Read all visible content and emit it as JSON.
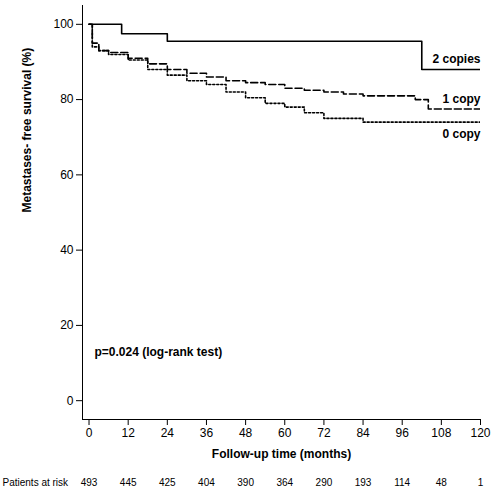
{
  "chart_data": {
    "type": "line",
    "xlabel": "Follow-up time (months)",
    "ylabel": "Metastases- free survival (%)",
    "xlim": [
      -2,
      120
    ],
    "ylim": [
      -5,
      105
    ],
    "xticks": [
      0,
      12,
      24,
      36,
      48,
      60,
      72,
      84,
      96,
      108,
      120
    ],
    "yticks": [
      0,
      20,
      40,
      60,
      80,
      100
    ],
    "grid": false,
    "annotations": [
      {
        "text": "p=0.024 (log-rank test)"
      }
    ],
    "series": [
      {
        "name": "2 copies",
        "color": "#000000",
        "line_style": "solid",
        "x": [
          0,
          10,
          24,
          102,
          120
        ],
        "values": [
          100,
          97.5,
          95.5,
          88,
          88
        ]
      },
      {
        "name": "1 copy",
        "color": "#000000",
        "line_style": "dashed",
        "x": [
          0,
          1,
          3,
          6,
          12,
          18,
          24,
          30,
          36,
          42,
          48,
          54,
          60,
          66,
          72,
          78,
          84,
          96,
          100,
          104,
          120
        ],
        "values": [
          100,
          95,
          93,
          92.5,
          91,
          89.5,
          88,
          87,
          86,
          85,
          84.5,
          84,
          83,
          82.5,
          82,
          81.5,
          81,
          81,
          80,
          77.5,
          77.5
        ]
      },
      {
        "name": "0 copy",
        "color": "#000000",
        "line_style": "dotted",
        "x": [
          0,
          1,
          3,
          6,
          12,
          18,
          24,
          30,
          36,
          42,
          48,
          54,
          60,
          66,
          72,
          84,
          120
        ],
        "values": [
          100,
          94,
          93,
          92,
          90.5,
          88,
          86.5,
          85,
          84,
          82,
          80.5,
          79,
          78,
          76.5,
          75,
          74,
          74
        ]
      }
    ],
    "at_risk": {
      "label": "Patients at risk",
      "x": [
        0,
        12,
        24,
        36,
        48,
        60,
        72,
        84,
        96,
        108,
        120
      ],
      "values": [
        493,
        445,
        425,
        404,
        390,
        364,
        290,
        193,
        114,
        48,
        1
      ]
    }
  }
}
